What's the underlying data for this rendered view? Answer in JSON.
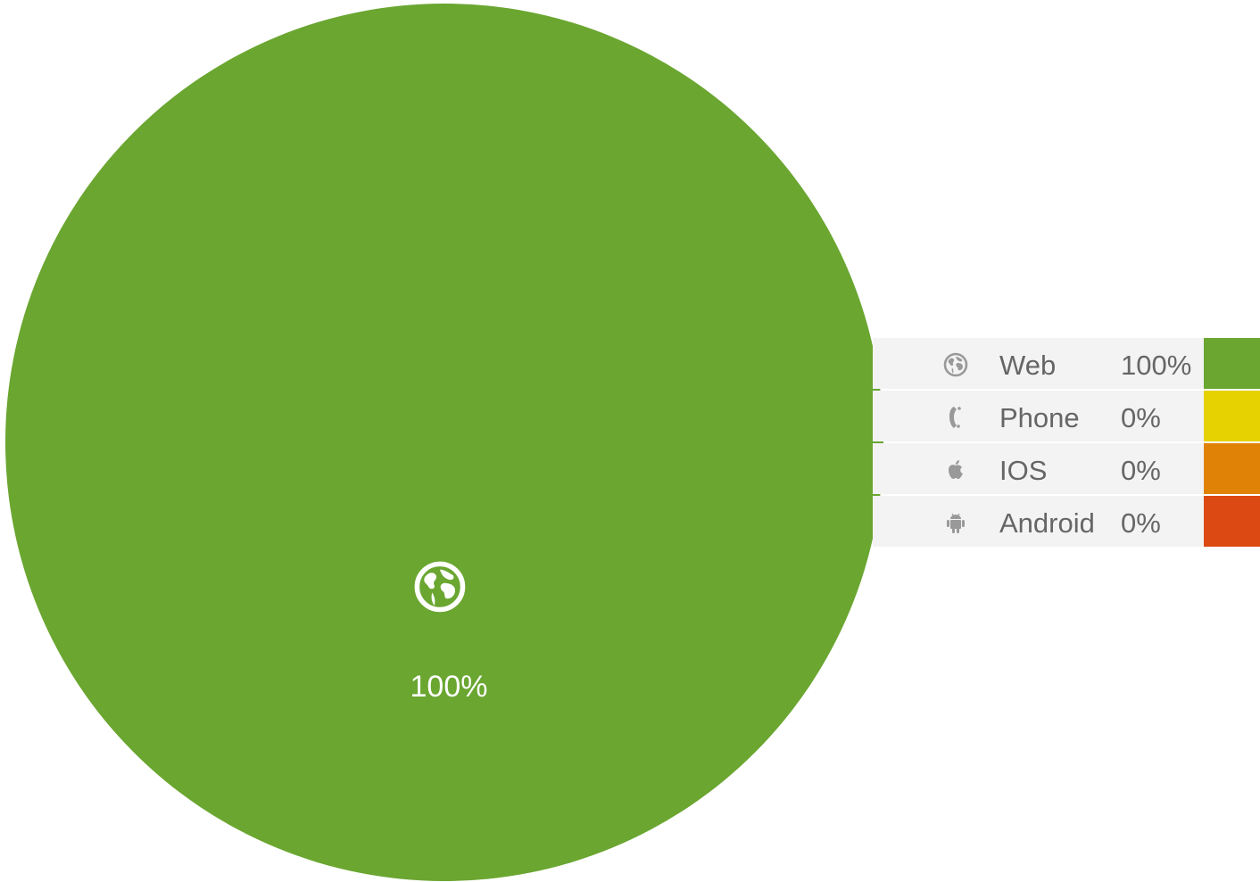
{
  "chart_data": {
    "type": "pie",
    "title": "",
    "categories": [
      "Web",
      "Phone",
      "IOS",
      "Android"
    ],
    "values": [
      100,
      0,
      0,
      0
    ],
    "value_labels": [
      "100%",
      "0%",
      "0%",
      "0%"
    ],
    "colors": [
      "#6aa630",
      "#e6d200",
      "#e08206",
      "#dc4913"
    ],
    "icons": [
      "globe-icon",
      "phone-icon",
      "apple-icon",
      "android-icon"
    ],
    "legend_position": "right",
    "slice_icon_color": "#ffffff",
    "legend_icon_color": "#999999"
  }
}
